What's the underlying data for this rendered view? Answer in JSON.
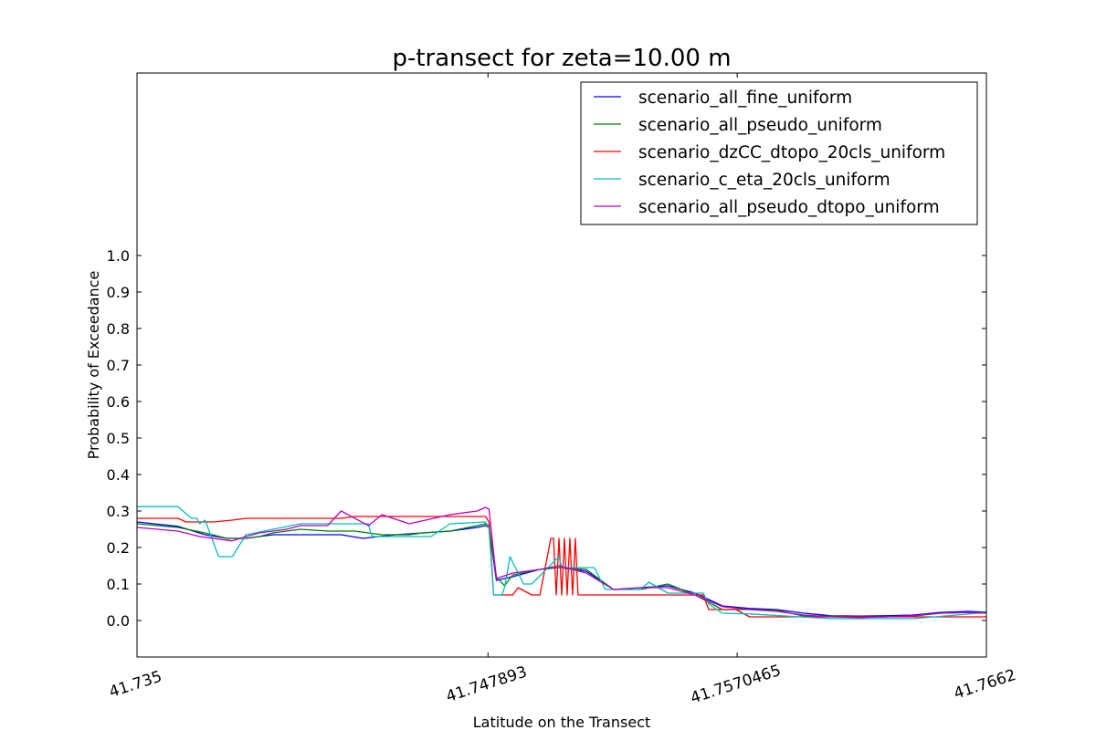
{
  "chart_data": {
    "type": "line",
    "title": "p-transect for zeta=10.00 m",
    "xlabel": "Latitude on the Transect",
    "ylabel": "Probability of Exceedance",
    "xlim": [
      41.735,
      41.7662
    ],
    "ylim": [
      -0.1,
      1.5
    ],
    "x_ticks": [
      "41.735",
      "41.747893",
      "41.7570465",
      "41.7662"
    ],
    "y_ticks": [
      "0.0",
      "0.1",
      "0.2",
      "0.3",
      "0.4",
      "0.5",
      "0.6",
      "0.7",
      "0.8",
      "0.9",
      "1.0"
    ],
    "grid": false,
    "legend_position": "top-right",
    "series": [
      {
        "name": "scenario_all_fine_uniform",
        "color": "#0000ff",
        "x": [
          41.735,
          41.7365,
          41.7375,
          41.7383,
          41.739,
          41.74,
          41.741,
          41.7425,
          41.7433,
          41.7445,
          41.7455,
          41.7465,
          41.7475,
          41.7478,
          41.74793,
          41.7482,
          41.7488,
          41.7498,
          41.7505,
          41.7515,
          41.7525,
          41.7535,
          41.7545,
          41.7555,
          41.7565,
          41.7575,
          41.7585,
          41.7595,
          41.7605,
          41.7615,
          41.7625,
          41.7635,
          41.7645,
          41.7655,
          41.7662
        ],
        "y": [
          0.27,
          0.258,
          0.235,
          0.225,
          0.225,
          0.235,
          0.235,
          0.235,
          0.225,
          0.235,
          0.24,
          0.245,
          0.255,
          0.26,
          0.255,
          0.11,
          0.12,
          0.14,
          0.145,
          0.135,
          0.085,
          0.09,
          0.095,
          0.075,
          0.04,
          0.033,
          0.03,
          0.02,
          0.013,
          0.012,
          0.013,
          0.015,
          0.022,
          0.025,
          0.023
        ]
      },
      {
        "name": "scenario_all_pseudo_uniform",
        "color": "#008000",
        "x": [
          41.735,
          41.7365,
          41.7375,
          41.7383,
          41.739,
          41.7395,
          41.74,
          41.741,
          41.742,
          41.743,
          41.744,
          41.7447,
          41.745,
          41.7455,
          41.7465,
          41.7475,
          41.7478,
          41.74793,
          41.7482,
          41.7485,
          41.7488,
          41.7498,
          41.7505,
          41.7515,
          41.7525,
          41.7535,
          41.7545,
          41.7555,
          41.7565,
          41.7575,
          41.7585,
          41.7595,
          41.7605,
          41.7615,
          41.7625,
          41.7635,
          41.7645,
          41.7655,
          41.7662
        ],
        "y": [
          0.265,
          0.255,
          0.24,
          0.225,
          0.225,
          0.23,
          0.24,
          0.25,
          0.245,
          0.245,
          0.235,
          0.235,
          0.235,
          0.24,
          0.245,
          0.26,
          0.265,
          0.26,
          0.12,
          0.095,
          0.125,
          0.14,
          0.145,
          0.14,
          0.085,
          0.085,
          0.1,
          0.07,
          0.03,
          0.03,
          0.028,
          0.012,
          0.012,
          0.01,
          0.01,
          0.012,
          0.02,
          0.022,
          0.022
        ]
      },
      {
        "name": "scenario_dzCC_dtopo_20cls_uniform",
        "color": "#ff0000",
        "x": [
          41.735,
          41.7365,
          41.7368,
          41.7378,
          41.7385,
          41.739,
          41.7425,
          41.743,
          41.7478,
          41.74793,
          41.7481,
          41.7488,
          41.749,
          41.7495,
          41.7498,
          41.7502,
          41.7503,
          41.7504,
          41.7505,
          41.7506,
          41.7507,
          41.7508,
          41.7509,
          41.751,
          41.7511,
          41.7512,
          41.7513,
          41.7515,
          41.755,
          41.7558,
          41.756,
          41.757,
          41.7575,
          41.76,
          41.7625,
          41.7662
        ],
        "y": [
          0.28,
          0.28,
          0.27,
          0.27,
          0.275,
          0.28,
          0.28,
          0.285,
          0.285,
          0.27,
          0.07,
          0.07,
          0.09,
          0.07,
          0.07,
          0.225,
          0.225,
          0.07,
          0.225,
          0.07,
          0.225,
          0.07,
          0.225,
          0.07,
          0.225,
          0.07,
          0.07,
          0.07,
          0.07,
          0.07,
          0.03,
          0.03,
          0.01,
          0.01,
          0.01,
          0.01
        ]
      },
      {
        "name": "scenario_c_eta_20cls_uniform",
        "color": "#00bfbf",
        "x": [
          41.735,
          41.7365,
          41.737,
          41.7372,
          41.7373,
          41.7375,
          41.738,
          41.7385,
          41.739,
          41.741,
          41.7435,
          41.7436,
          41.7437,
          41.745,
          41.7458,
          41.7465,
          41.7478,
          41.74793,
          41.7481,
          41.7484,
          41.7485,
          41.7487,
          41.7492,
          41.7495,
          41.7505,
          41.7506,
          41.7512,
          41.7515,
          41.7518,
          41.7522,
          41.7535,
          41.7538,
          41.7545,
          41.7558,
          41.756,
          41.7565,
          41.7575,
          41.7605,
          41.7635,
          41.7662
        ],
        "y": [
          0.312,
          0.312,
          0.28,
          0.28,
          0.265,
          0.275,
          0.175,
          0.175,
          0.235,
          0.265,
          0.265,
          0.235,
          0.23,
          0.23,
          0.23,
          0.265,
          0.27,
          0.25,
          0.07,
          0.07,
          0.09,
          0.175,
          0.1,
          0.1,
          0.175,
          0.145,
          0.145,
          0.145,
          0.145,
          0.085,
          0.085,
          0.105,
          0.075,
          0.075,
          0.045,
          0.02,
          0.018,
          0.005,
          0.005,
          0.022
        ]
      },
      {
        "name": "scenario_all_pseudo_dtopo_uniform",
        "color": "#bf00bf",
        "x": [
          41.735,
          41.7365,
          41.7373,
          41.7385,
          41.739,
          41.7395,
          41.7405,
          41.741,
          41.742,
          41.7425,
          41.7435,
          41.744,
          41.745,
          41.7465,
          41.7475,
          41.7478,
          41.74793,
          41.7482,
          41.7488,
          41.7498,
          41.7505,
          41.7515,
          41.7525,
          41.7535,
          41.7545,
          41.7555,
          41.7565,
          41.7575,
          41.7585,
          41.7595,
          41.7605,
          41.7615,
          41.7625,
          41.7635,
          41.7645,
          41.7655,
          41.7662
        ],
        "y": [
          0.255,
          0.245,
          0.23,
          0.218,
          0.23,
          0.24,
          0.25,
          0.26,
          0.26,
          0.3,
          0.26,
          0.29,
          0.265,
          0.29,
          0.3,
          0.31,
          0.305,
          0.115,
          0.13,
          0.14,
          0.15,
          0.13,
          0.085,
          0.09,
          0.09,
          0.07,
          0.038,
          0.03,
          0.025,
          0.015,
          0.01,
          0.008,
          0.01,
          0.013,
          0.02,
          0.022,
          0.02
        ]
      }
    ]
  }
}
